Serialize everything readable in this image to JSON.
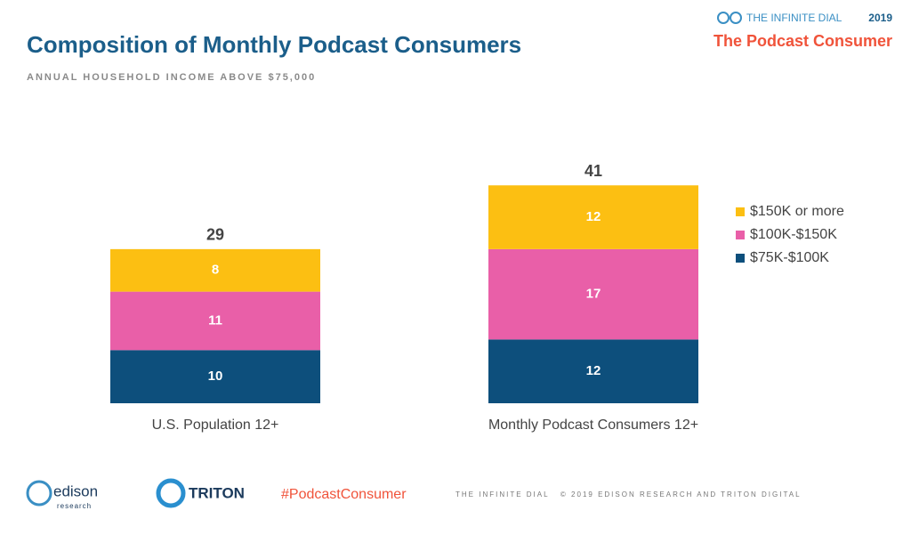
{
  "header": {
    "brand": "THE INFINITE DIAL",
    "year": "2019",
    "section": "The Podcast Consumer"
  },
  "chart_data": {
    "type": "stacked_bar",
    "title": "Composition of Monthly Podcast Consumers",
    "subtitle": "ANNUAL HOUSEHOLD INCOME ABOVE $75,000",
    "categories": [
      "U.S. Population 12+",
      "Monthly Podcast Consumers 12+"
    ],
    "series": [
      {
        "name": "$75K-$100K",
        "color": "#0d4f7c",
        "values": [
          10,
          12
        ]
      },
      {
        "name": "$100K-$150K",
        "color": "#e95fa8",
        "values": [
          11,
          17
        ]
      },
      {
        "name": "$150K or more",
        "color": "#fcbf12",
        "values": [
          8,
          12
        ]
      }
    ],
    "totals": [
      29,
      41
    ],
    "legend": "right"
  },
  "footer": {
    "edison": "edison",
    "edison_sub": "research",
    "triton": "TRITON",
    "hashtag": "#PodcastConsumer",
    "credit": "THE INFINITE DIAL   © 2019 EDISON RESEARCH AND TRITON DIGITAL"
  }
}
